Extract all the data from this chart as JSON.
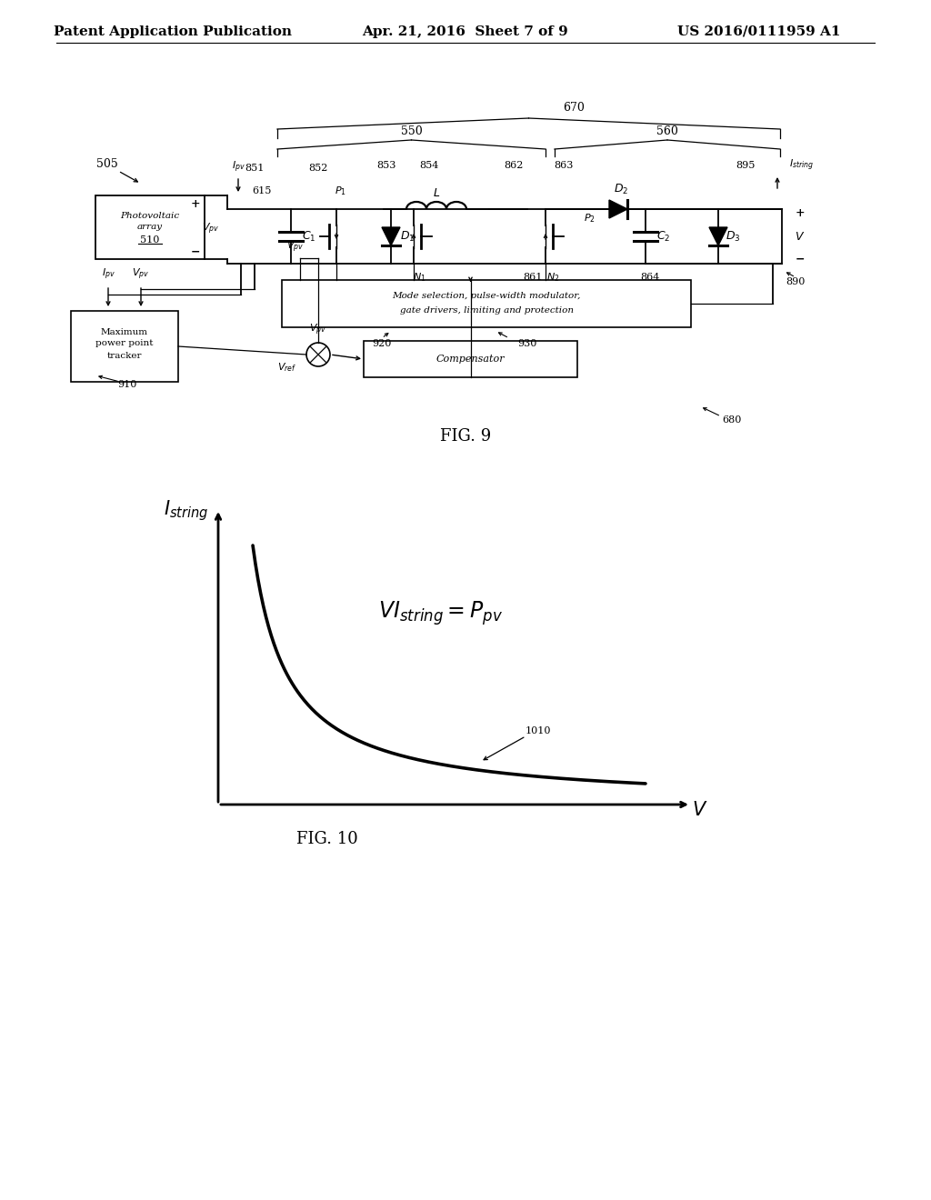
{
  "page_header_left": "Patent Application Publication",
  "page_header_center": "Apr. 21, 2016  Sheet 7 of 9",
  "page_header_right": "US 2016/0111959 A1",
  "fig9_caption": "FIG. 9",
  "fig10_caption": "FIG. 10",
  "background_color": "#ffffff",
  "text_color": "#000000",
  "line_color": "#000000",
  "header_font_size": 11,
  "label_font_size": 9,
  "fig_caption_font_size": 13
}
